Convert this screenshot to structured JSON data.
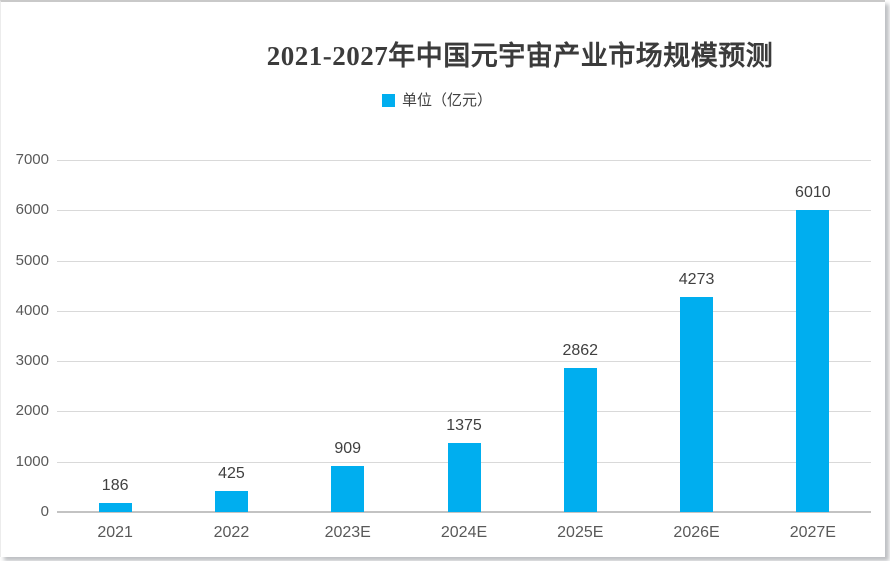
{
  "chart_data": {
    "type": "bar",
    "title": "2021-2027年中国元宇宙产业市场规模预测",
    "legend_label": "单位（亿元）",
    "legend_position": "top",
    "categories": [
      "2021",
      "2022",
      "2023E",
      "2024E",
      "2025E",
      "2026E",
      "2027E"
    ],
    "values": [
      186,
      425,
      909,
      1375,
      2862,
      4273,
      6010
    ],
    "xlabel": "",
    "ylabel": "",
    "ylim": [
      0,
      7000
    ],
    "ytick_step": 1000,
    "grid": true,
    "colors": {
      "bar": "#00AEEF",
      "gridline": "#D9D9D9",
      "axis_line": "#C3C3C3",
      "tick_label": "#595959",
      "data_label": "#404040",
      "title": "#3B3B3B",
      "legend_text": "#404040",
      "background": "#FFFFFF"
    }
  }
}
